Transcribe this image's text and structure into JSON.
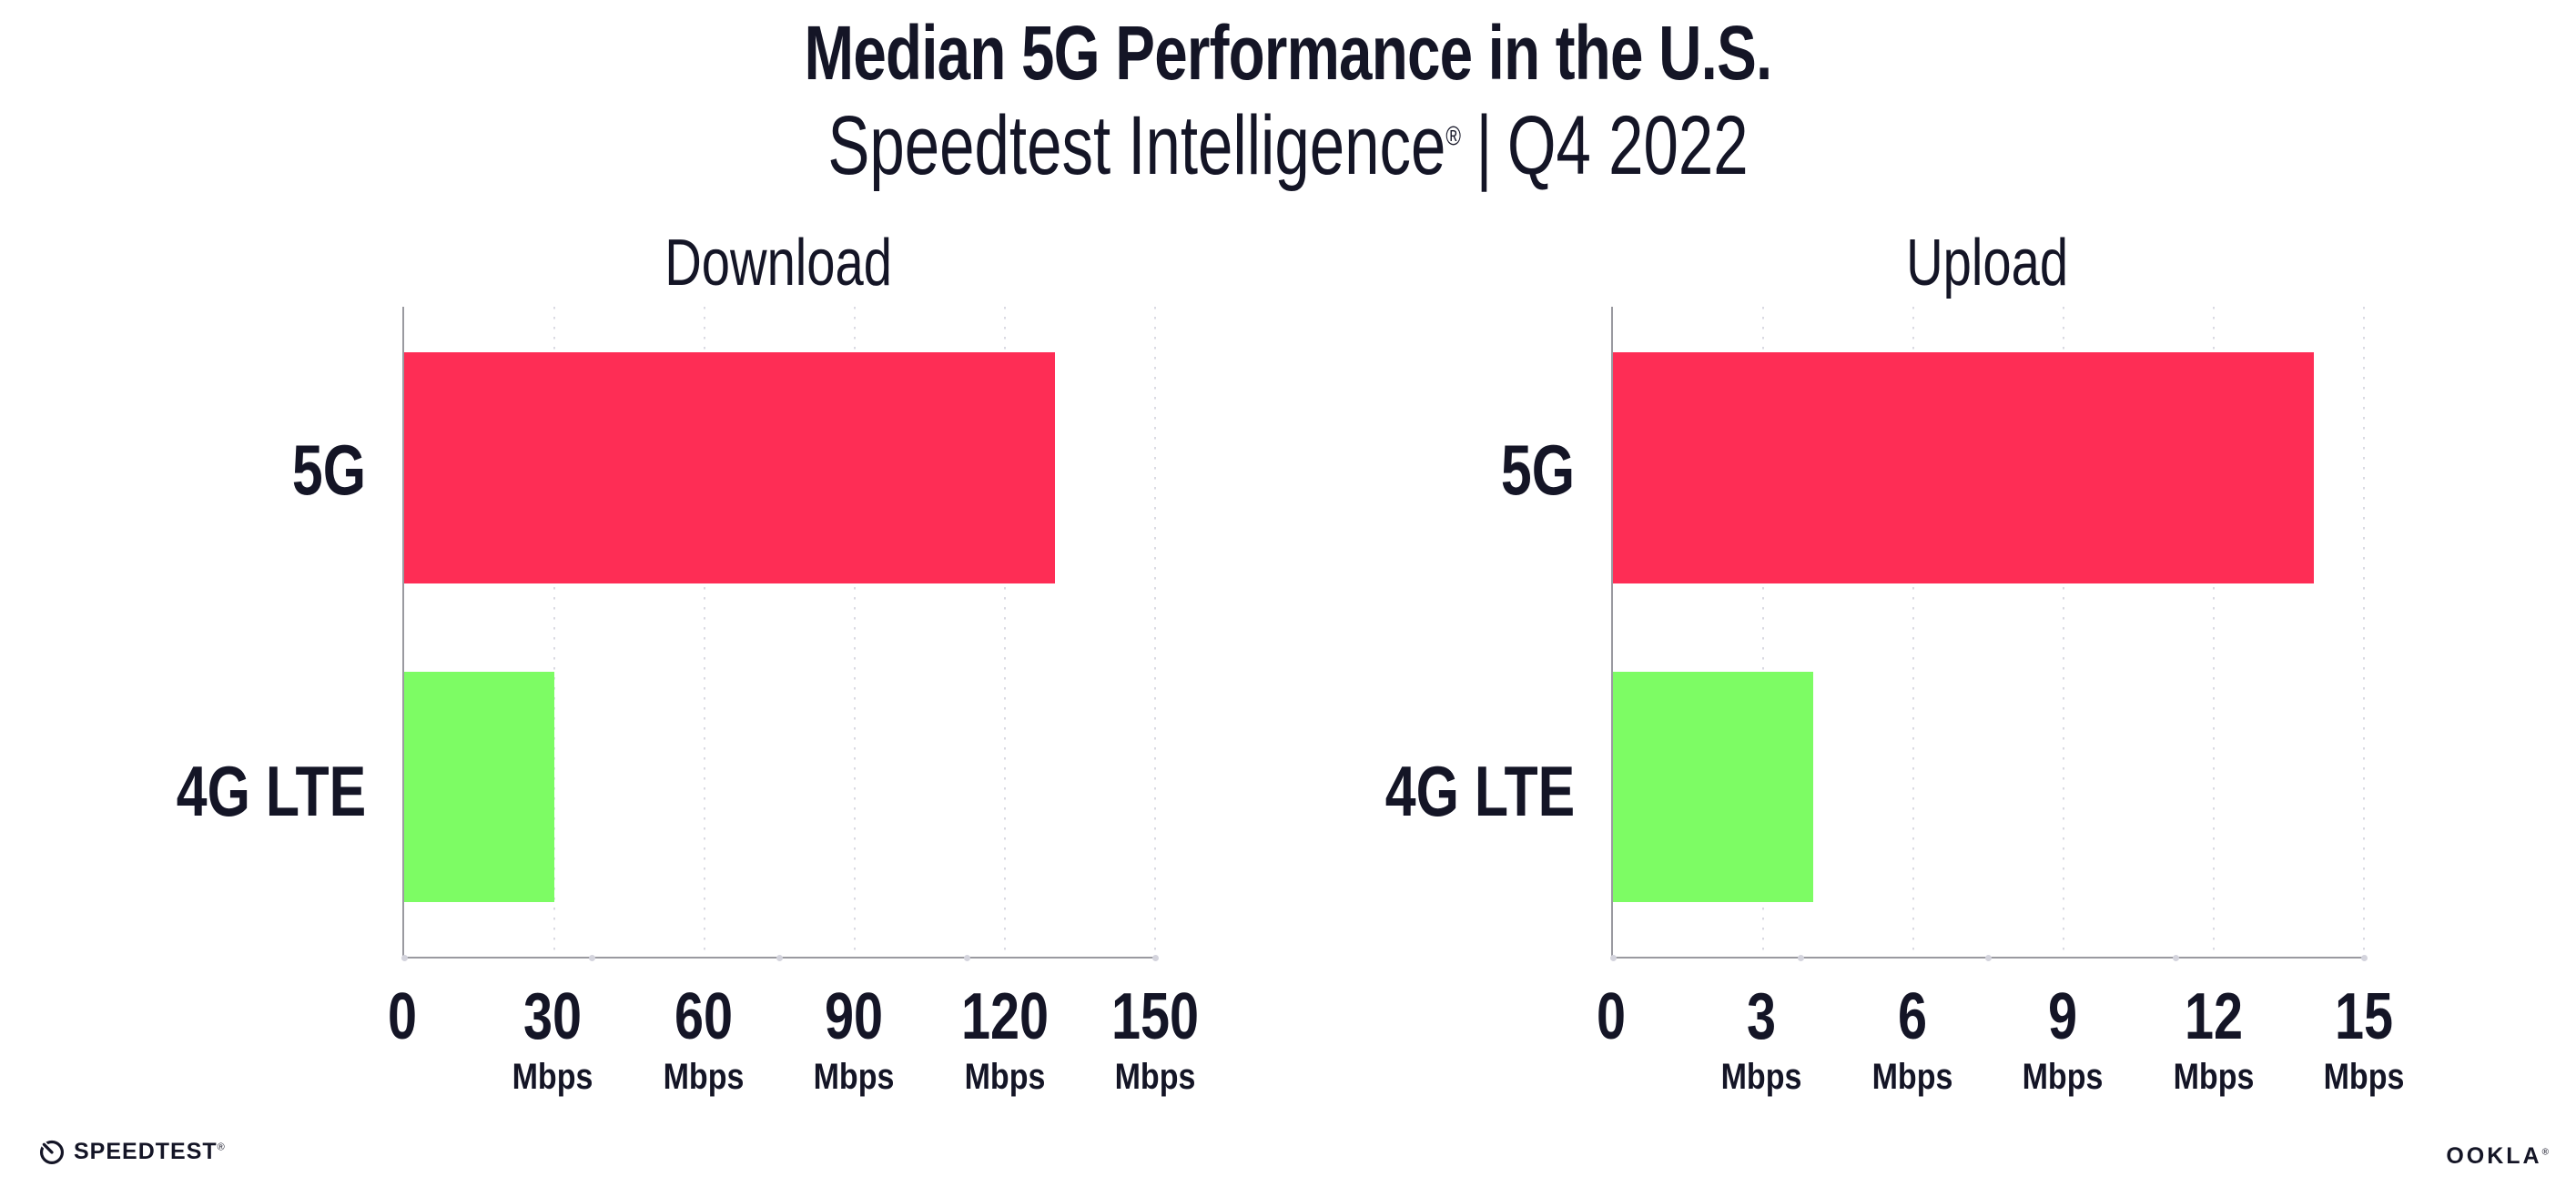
{
  "header": {
    "title": "Median 5G Performance in the U.S.",
    "subtitle_brand": "Speedtest Intelligence",
    "subtitle_reg": "®",
    "subtitle_separator": "|",
    "subtitle_period": "Q4 2022"
  },
  "chart_data": [
    {
      "type": "bar",
      "orientation": "horizontal",
      "title": "Download",
      "categories": [
        "5G",
        "4G LTE"
      ],
      "values": [
        130,
        30
      ],
      "unit": "Mbps",
      "xlabel": "",
      "xlim": [
        0,
        150
      ],
      "xticks": [
        0,
        30,
        60,
        90,
        120,
        150
      ],
      "bar_colors": [
        "#FE2D55",
        "#7DFC64"
      ],
      "grid": "dotted-vertical-light"
    },
    {
      "type": "bar",
      "orientation": "horizontal",
      "title": "Upload",
      "categories": [
        "5G",
        "4G LTE"
      ],
      "values": [
        14,
        4
      ],
      "unit": "Mbps",
      "xlabel": "",
      "xlim": [
        0,
        15
      ],
      "xticks": [
        0,
        3,
        6,
        9,
        12,
        15
      ],
      "bar_colors": [
        "#FE2D55",
        "#7DFC64"
      ],
      "grid": "dotted-vertical-light"
    }
  ],
  "footer": {
    "speedtest_label": "SPEEDTEST",
    "speedtest_mark": "®",
    "ookla_label": "OOKLA",
    "ookla_mark": "®"
  },
  "colors": {
    "accent_red": "#FE2D55",
    "accent_green": "#7DFC64",
    "axis": "#9a9aa0",
    "gridline": "#dadae3",
    "text": "#141526"
  }
}
